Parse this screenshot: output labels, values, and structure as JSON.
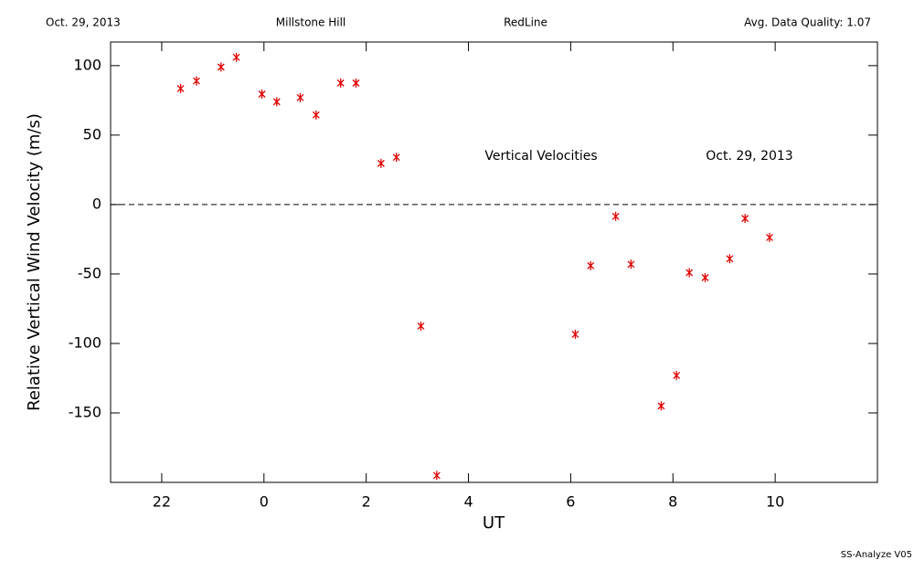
{
  "chart_data": {
    "type": "scatter",
    "header": [
      "Oct. 29, 2013",
      "Millstone Hill",
      "RedLine",
      "Avg. Data Quality: 1.07"
    ],
    "annotations": [
      "Vertical Velocities",
      "Oct. 29, 2013"
    ],
    "footer": "SS-Analyze V05",
    "x_label": "UT",
    "y_label": "Relative Vertical Wind Velocity (m/s)",
    "xlim": [
      -3,
      12
    ],
    "ylim": [
      -200,
      117
    ],
    "xticks": [
      {
        "value": -2,
        "label": "22"
      },
      0,
      2,
      4,
      6,
      8,
      10
    ],
    "yticks": [
      -150,
      -100,
      -50,
      0,
      50,
      100
    ],
    "hline": 0,
    "series": [
      {
        "color": "#e00000",
        "x": [
          -1.63,
          -1.32,
          -0.84,
          -0.54,
          -0.04,
          0.25,
          0.71,
          1.02,
          1.5,
          1.8,
          2.29,
          2.59,
          3.07,
          3.38,
          6.09,
          6.39,
          6.88,
          7.18,
          7.77,
          8.07,
          8.32,
          8.63,
          9.11,
          9.41,
          9.89
        ],
        "values": [
          83.5,
          89,
          99,
          106,
          79.5,
          74,
          77,
          64.5,
          87.5,
          87.5,
          29.6,
          34,
          -87.5,
          -195,
          -93.4,
          -44,
          -8.5,
          -43,
          -145,
          -123,
          -49,
          -52.6,
          -39,
          -10,
          -23.7
        ]
      }
    ]
  }
}
